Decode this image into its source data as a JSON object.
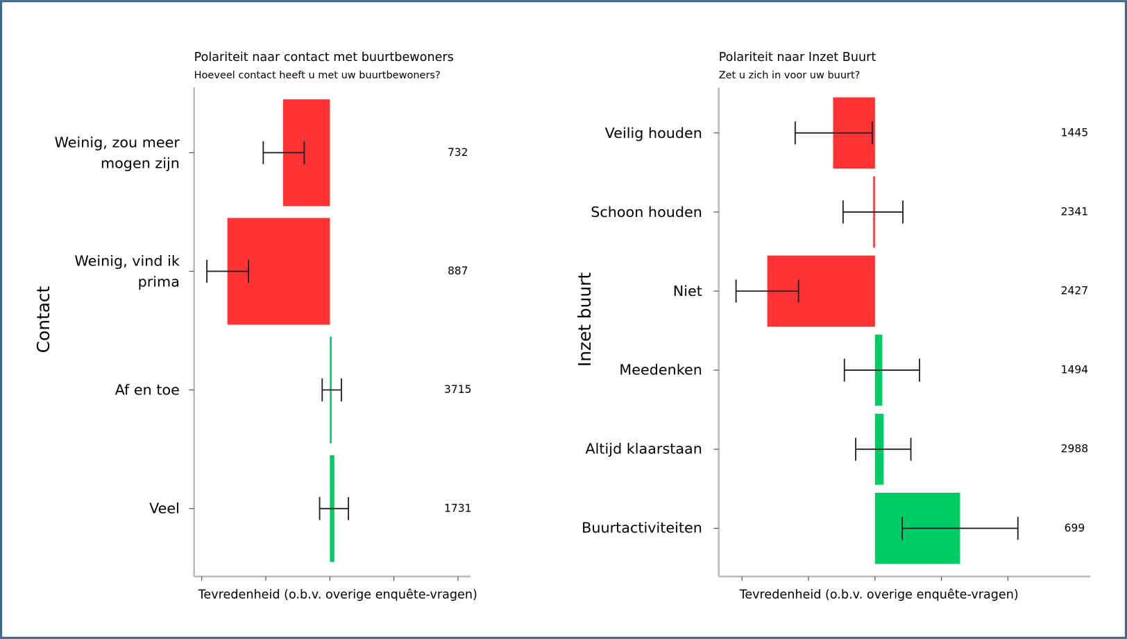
{
  "chart_data": [
    {
      "type": "bar",
      "orientation": "horizontal",
      "title": "Polariteit naar contact met buurtbewoners",
      "subtitle": "Hoeveel contact heeft u met uw buurtbewoners?",
      "y_label": "Contact",
      "x_label": "Tevredenheid (o.b.v. overige enquête-vragen)",
      "categories": [
        "Weinig, zou meer mogen zijn",
        "Weinig, vind ik prima",
        "Af en toe",
        "Veel"
      ],
      "values": [
        -0.73,
        -1.6,
        0.02,
        0.07
      ],
      "ci_low": [
        -1.04,
        -1.92,
        -0.12,
        -0.16
      ],
      "ci_high": [
        -0.4,
        -1.27,
        0.18,
        0.29
      ],
      "counts": [
        732,
        887,
        3715,
        1731
      ],
      "xlim": [
        -2.12,
        2.2
      ],
      "xticks": [
        -2,
        -1,
        0,
        1,
        2
      ],
      "negative_color": "#ff3333",
      "positive_color": "#00cc66"
    },
    {
      "type": "bar",
      "orientation": "horizontal",
      "title": "Polariteit naar Inzet Buurt",
      "subtitle": "Zet u zich in voor uw buurt?",
      "y_label": "Inzet buurt",
      "x_label": "Tevredenheid (o.b.v. overige enquête-vragen)",
      "categories": [
        "Veilig houden",
        "Schoon houden",
        "Niet",
        "Meedenken",
        "Altijd klaarstaan",
        "Buurtactiviteiten"
      ],
      "values": [
        -0.63,
        -0.02,
        -1.62,
        0.11,
        0.13,
        1.28
      ],
      "ci_low": [
        -1.2,
        -0.48,
        -2.09,
        -0.46,
        -0.29,
        0.41
      ],
      "ci_high": [
        -0.04,
        0.42,
        -1.15,
        0.67,
        0.54,
        2.15
      ],
      "counts": [
        1445,
        2341,
        2427,
        1494,
        2988,
        699
      ],
      "xlim": [
        -2.35,
        3.24
      ],
      "xticks": [
        -2,
        -1,
        0,
        1,
        2
      ],
      "negative_color": "#ff3333",
      "positive_color": "#00cc66"
    }
  ]
}
